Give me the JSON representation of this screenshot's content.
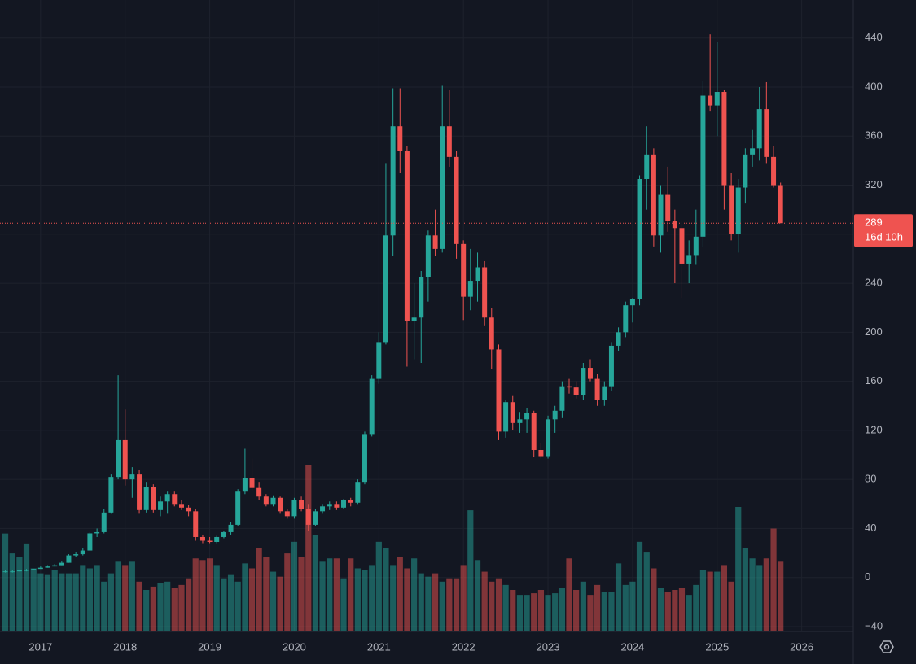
{
  "chart_data": {
    "type": "candlestick",
    "x": [
      2016.583,
      2016.667,
      2016.75,
      2016.833,
      2016.917,
      2017,
      2017.083,
      2017.167,
      2017.25,
      2017.333,
      2017.417,
      2017.5,
      2017.583,
      2017.667,
      2017.75,
      2017.833,
      2017.917,
      2018,
      2018.083,
      2018.167,
      2018.25,
      2018.333,
      2018.417,
      2018.5,
      2018.583,
      2018.667,
      2018.75,
      2018.833,
      2018.917,
      2019,
      2019.083,
      2019.167,
      2019.25,
      2019.333,
      2019.417,
      2019.5,
      2019.583,
      2019.667,
      2019.75,
      2019.833,
      2019.917,
      2020,
      2020.083,
      2020.167,
      2020.25,
      2020.333,
      2020.417,
      2020.5,
      2020.583,
      2020.667,
      2020.75,
      2020.833,
      2020.917,
      2021,
      2021.083,
      2021.167,
      2021.25,
      2021.333,
      2021.417,
      2021.5,
      2021.583,
      2021.667,
      2021.75,
      2021.833,
      2021.917,
      2022,
      2022.083,
      2022.167,
      2022.25,
      2022.333,
      2022.417,
      2022.5,
      2022.583,
      2022.667,
      2022.75,
      2022.833,
      2022.917,
      2023,
      2023.083,
      2023.167,
      2023.25,
      2023.333,
      2023.417,
      2023.5,
      2023.583,
      2023.667,
      2023.75,
      2023.833,
      2023.917,
      2024,
      2024.083,
      2024.167,
      2024.25,
      2024.333,
      2024.417,
      2024.5,
      2024.583,
      2024.667,
      2024.75,
      2024.833,
      2024.917,
      2025,
      2025.083,
      2025.167,
      2025.25,
      2025.333,
      2025.417,
      2025.5,
      2025.583,
      2025.667,
      2025.75
    ],
    "open": [
      5,
      5,
      5,
      6,
      6,
      7,
      8,
      9,
      10,
      12,
      18,
      19,
      22,
      36,
      37,
      53,
      82,
      112,
      80,
      84,
      55,
      74,
      55,
      62,
      68,
      60,
      57,
      54,
      33,
      30,
      29,
      33,
      37,
      43,
      70,
      81,
      73,
      66,
      60,
      65,
      54,
      50,
      63,
      56,
      43,
      54,
      58,
      60,
      57,
      63,
      61,
      78,
      117,
      162,
      192,
      279,
      368,
      348,
      209,
      212,
      245,
      279,
      268,
      368,
      343,
      272,
      229,
      242,
      253,
      212,
      186,
      119,
      143,
      126,
      129,
      134,
      104,
      99,
      129,
      136,
      156,
      155,
      149,
      171,
      162,
      145,
      156,
      189,
      200,
      222,
      227,
      325,
      345,
      279,
      312,
      291,
      285,
      256,
      263,
      278,
      393,
      385,
      396,
      320,
      280,
      318,
      345,
      350,
      382,
      343,
      320
    ],
    "high": [
      6,
      6,
      6,
      7,
      7,
      9,
      10,
      11,
      13,
      19,
      21,
      24,
      37,
      40,
      56,
      84,
      165,
      137,
      90,
      88,
      78,
      76,
      66,
      70,
      70,
      63,
      59,
      56,
      35,
      33,
      34,
      38,
      45,
      72,
      105,
      97,
      78,
      68,
      67,
      66,
      56,
      65,
      66,
      60,
      56,
      60,
      62,
      62,
      64,
      65,
      80,
      119,
      165,
      200,
      338,
      399,
      399,
      352,
      240,
      250,
      283,
      300,
      401,
      398,
      348,
      275,
      268,
      265,
      258,
      220,
      190,
      145,
      148,
      135,
      138,
      136,
      110,
      132,
      140,
      160,
      162,
      160,
      175,
      178,
      166,
      160,
      192,
      204,
      225,
      228,
      328,
      368,
      350,
      320,
      335,
      300,
      290,
      275,
      300,
      405,
      443,
      437,
      398,
      330,
      325,
      350,
      365,
      400,
      404,
      352,
      322
    ],
    "low": [
      4,
      4,
      5,
      5,
      6,
      7,
      8,
      9,
      10,
      12,
      17,
      18,
      22,
      33,
      36,
      52,
      80,
      75,
      65,
      52,
      53,
      53,
      50,
      52,
      58,
      55,
      50,
      30,
      28,
      28,
      28,
      32,
      35,
      42,
      68,
      70,
      63,
      58,
      58,
      52,
      48,
      48,
      54,
      38,
      42,
      52,
      55,
      55,
      56,
      58,
      60,
      76,
      115,
      158,
      190,
      262,
      330,
      172,
      178,
      175,
      225,
      262,
      265,
      335,
      260,
      210,
      218,
      225,
      205,
      170,
      112,
      114,
      120,
      118,
      118,
      98,
      97,
      97,
      118,
      130,
      150,
      146,
      145,
      160,
      140,
      140,
      152,
      185,
      196,
      208,
      222,
      300,
      270,
      265,
      282,
      240,
      228,
      240,
      255,
      270,
      380,
      360,
      300,
      275,
      265,
      305,
      335,
      340,
      338,
      318,
      289
    ],
    "close": [
      5,
      5,
      6,
      6,
      7,
      8,
      9,
      10,
      12,
      18,
      19,
      22,
      36,
      37,
      53,
      82,
      112,
      80,
      84,
      55,
      74,
      55,
      62,
      68,
      60,
      57,
      54,
      33,
      30,
      29,
      33,
      37,
      43,
      70,
      81,
      73,
      66,
      60,
      65,
      54,
      50,
      63,
      56,
      43,
      54,
      58,
      60,
      57,
      63,
      61,
      78,
      117,
      162,
      192,
      279,
      368,
      348,
      209,
      212,
      245,
      279,
      268,
      368,
      343,
      272,
      229,
      242,
      253,
      212,
      186,
      119,
      143,
      126,
      129,
      134,
      104,
      99,
      129,
      136,
      156,
      155,
      149,
      171,
      162,
      145,
      156,
      189,
      200,
      222,
      227,
      325,
      345,
      279,
      312,
      291,
      285,
      256,
      263,
      278,
      393,
      385,
      396,
      320,
      280,
      318,
      345,
      350,
      382,
      343,
      320,
      289
    ],
    "volume": [
      59,
      47,
      45,
      53,
      38,
      35,
      34,
      37,
      35,
      35,
      35,
      40,
      38,
      40,
      30,
      35,
      42,
      40,
      42,
      30,
      25,
      27,
      29,
      30,
      26,
      28,
      32,
      44,
      43,
      44,
      40,
      32,
      34,
      30,
      41,
      38,
      50,
      45,
      36,
      33,
      47,
      54,
      45,
      100,
      58,
      42,
      44,
      44,
      32,
      44,
      38,
      37,
      40,
      54,
      50,
      40,
      45,
      38,
      44,
      35,
      33,
      35,
      30,
      32,
      32,
      40,
      73,
      43,
      36,
      30,
      32,
      28,
      25,
      22,
      22,
      23,
      25,
      22,
      23,
      26,
      44,
      25,
      30,
      22,
      28,
      24,
      24,
      41,
      28,
      30,
      54,
      48,
      38,
      26,
      24,
      25,
      26,
      22,
      28,
      37,
      36,
      36,
      40,
      30,
      75,
      50,
      44,
      40,
      44,
      62,
      42
    ],
    "up_color": "#26a69a",
    "down_color": "#ef5350",
    "xlim": [
      2016.52,
      2026.61
    ],
    "xticks": [
      2017,
      2018,
      2019,
      2020,
      2021,
      2022,
      2023,
      2024,
      2025,
      2026
    ],
    "ylim": [
      -44,
      471
    ],
    "yticks": [
      {
        "value": -40,
        "label": "−40"
      },
      0,
      40,
      80,
      120,
      160,
      200,
      240,
      280,
      320,
      360,
      400,
      440
    ],
    "grid": true,
    "last_price": 289,
    "countdown": "16d 10h"
  }
}
